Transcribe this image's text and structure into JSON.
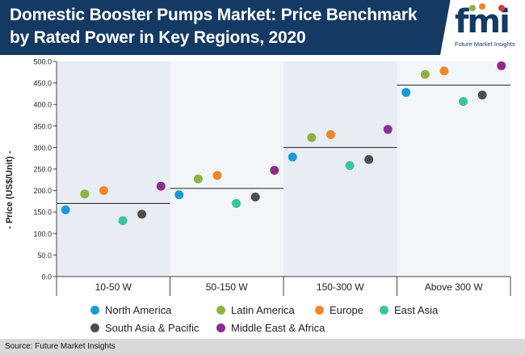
{
  "header": {
    "title": "Domestic Booster Pumps Market: Price Benchmark by Rated Power in Key Regions, 2020",
    "logo_text": "fmi",
    "logo_subtitle": "Future Market Insights"
  },
  "footer": {
    "source": "Source: Future Market Insights"
  },
  "chart_data": {
    "type": "scatter",
    "title": "Domestic Booster Pumps Market: Price Benchmark by Rated Power in Key Regions, 2020",
    "xlabel": "",
    "ylabel": "- Price (US$/Unit) -",
    "ylim": [
      0,
      500
    ],
    "yticks": [
      "0.0",
      "50.0",
      "100.0",
      "150.0",
      "200.0",
      "250.0",
      "300.0",
      "350.0",
      "400.0",
      "450.0",
      "500.0"
    ],
    "categories": [
      "10-50 W",
      "50-150 W",
      "150-300 W",
      "Above 300 W"
    ],
    "averages": [
      170,
      205,
      300,
      445
    ],
    "series": [
      {
        "name": "North America",
        "color": "#1a9ad6",
        "values": [
          155,
          190,
          278,
          428
        ]
      },
      {
        "name": "Latin America",
        "color": "#8db33f",
        "values": [
          192,
          227,
          323,
          470
        ]
      },
      {
        "name": "Europe",
        "color": "#f0862a",
        "values": [
          200,
          235,
          330,
          478
        ]
      },
      {
        "name": "East Asia",
        "color": "#3cc4a0",
        "values": [
          130,
          170,
          258,
          407
        ]
      },
      {
        "name": "South Asia & Pacific",
        "color": "#4d4d4d",
        "values": [
          145,
          185,
          272,
          422
        ]
      },
      {
        "name": "Middle East & Africa",
        "color": "#8e2c8e",
        "values": [
          210,
          247,
          342,
          490
        ]
      }
    ],
    "grid": false,
    "legend_position": "bottom"
  }
}
